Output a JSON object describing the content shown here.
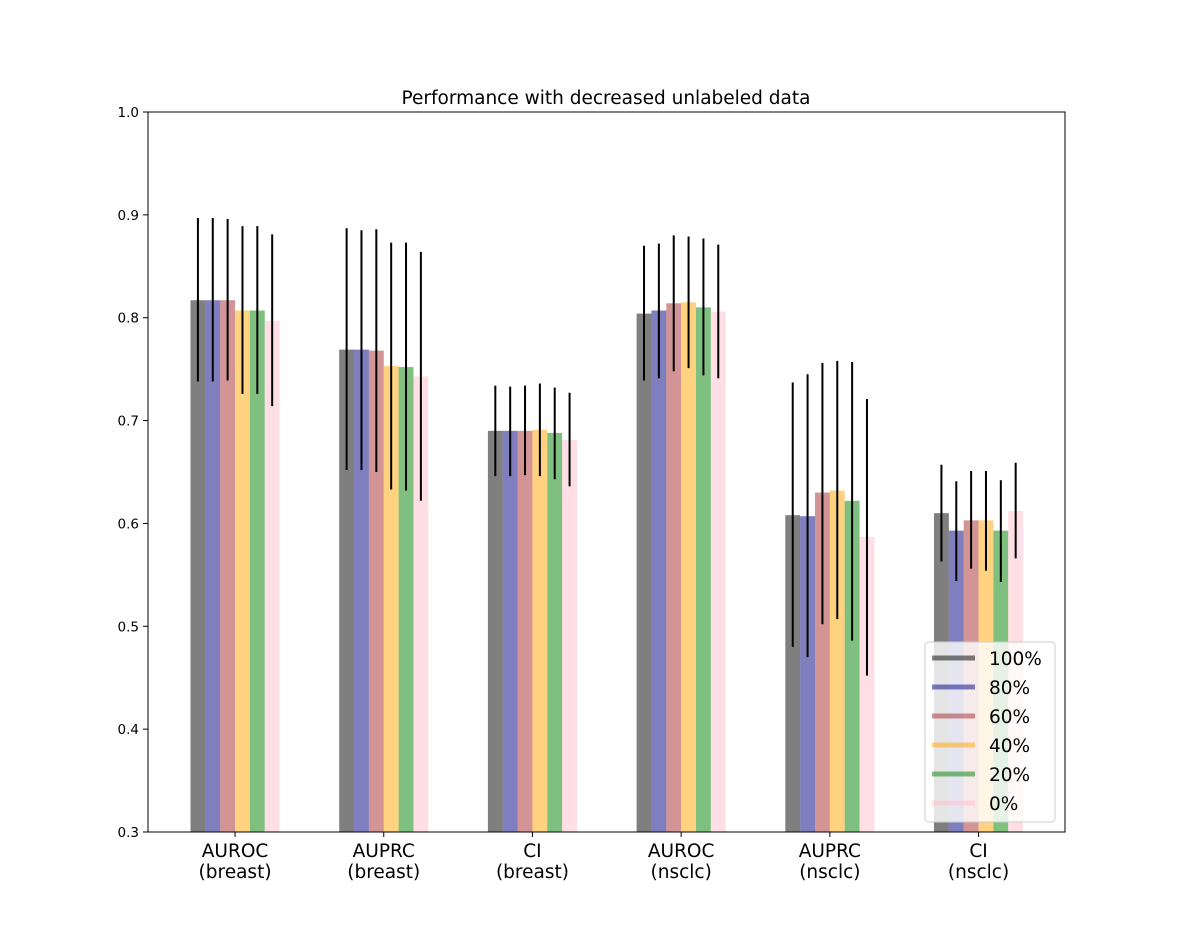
{
  "chart_data": {
    "type": "bar",
    "title": "Performance with decreased unlabeled data",
    "xlabel": "",
    "ylabel": "",
    "ylim": [
      0.3,
      1.0
    ],
    "yticks": [
      "0.3",
      "0.4",
      "0.5",
      "0.6",
      "0.7",
      "0.8",
      "0.9",
      "1.0"
    ],
    "categories": [
      [
        "AUROC",
        "(breast)"
      ],
      [
        "AUPRC",
        "(breast)"
      ],
      [
        "CI",
        "(breast)"
      ],
      [
        "AUROC",
        "(nsclc)"
      ],
      [
        "AUPRC",
        "(nsclc)"
      ],
      [
        "CI",
        "(nsclc)"
      ]
    ],
    "grid": false,
    "legend_position": "lower-right",
    "series": [
      {
        "name": "100%",
        "color": "#000000",
        "opacity": 0.5,
        "values": [
          0.817,
          0.769,
          0.69,
          0.804,
          0.608,
          0.61
        ],
        "err_low": [
          0.738,
          0.652,
          0.646,
          0.739,
          0.48,
          0.563
        ],
        "err_high": [
          0.897,
          0.887,
          0.734,
          0.87,
          0.737,
          0.657
        ]
      },
      {
        "name": "80%",
        "color": "#000080",
        "opacity": 0.5,
        "values": [
          0.817,
          0.769,
          0.69,
          0.807,
          0.607,
          0.593
        ],
        "err_low": [
          0.738,
          0.652,
          0.646,
          0.741,
          0.47,
          0.544
        ],
        "err_high": [
          0.897,
          0.885,
          0.733,
          0.872,
          0.745,
          0.641
        ]
      },
      {
        "name": "60%",
        "color": "#a52a2a",
        "opacity": 0.5,
        "values": [
          0.817,
          0.768,
          0.69,
          0.814,
          0.63,
          0.603
        ],
        "err_low": [
          0.739,
          0.65,
          0.647,
          0.748,
          0.502,
          0.556
        ],
        "err_high": [
          0.896,
          0.886,
          0.734,
          0.88,
          0.756,
          0.651
        ]
      },
      {
        "name": "40%",
        "color": "#ffa500",
        "opacity": 0.5,
        "values": [
          0.807,
          0.753,
          0.691,
          0.815,
          0.632,
          0.603
        ],
        "err_low": [
          0.726,
          0.633,
          0.646,
          0.751,
          0.507,
          0.554
        ],
        "err_high": [
          0.889,
          0.873,
          0.736,
          0.879,
          0.758,
          0.651
        ]
      },
      {
        "name": "20%",
        "color": "#008000",
        "opacity": 0.5,
        "values": [
          0.807,
          0.752,
          0.688,
          0.81,
          0.622,
          0.593
        ],
        "err_low": [
          0.726,
          0.632,
          0.643,
          0.744,
          0.486,
          0.543
        ],
        "err_high": [
          0.889,
          0.873,
          0.732,
          0.877,
          0.757,
          0.642
        ]
      },
      {
        "name": "0%",
        "color": "#ffc0cb",
        "opacity": 0.5,
        "values": [
          0.797,
          0.743,
          0.681,
          0.806,
          0.587,
          0.612
        ],
        "err_low": [
          0.714,
          0.622,
          0.636,
          0.741,
          0.452,
          0.566
        ],
        "err_high": [
          0.881,
          0.864,
          0.727,
          0.871,
          0.721,
          0.659
        ]
      }
    ]
  }
}
